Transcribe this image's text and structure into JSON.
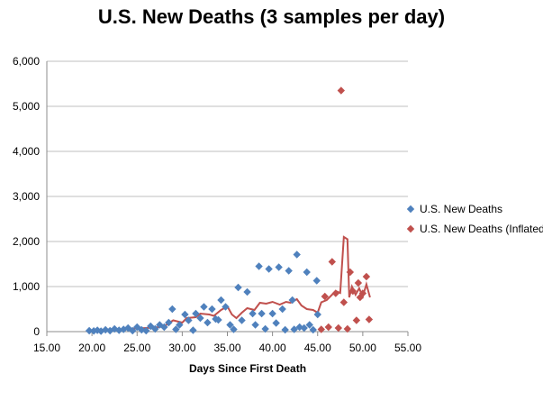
{
  "chart_data": {
    "type": "scatter",
    "title": "U.S. New Deaths (3 samples per day)",
    "xlabel": "Days Since First Death",
    "ylabel": "",
    "xlim": [
      15,
      55
    ],
    "ylim": [
      0,
      6000
    ],
    "x_ticks": [
      "15.00",
      "20.00",
      "25.00",
      "30.00",
      "35.00",
      "40.00",
      "45.00",
      "50.00",
      "55.00"
    ],
    "y_ticks": [
      "0",
      "1,000",
      "2,000",
      "3,000",
      "4,000",
      "5,000",
      "6,000"
    ],
    "grid": "horizontal",
    "legend_position": "right",
    "series": [
      {
        "name": "U.S. New Deaths",
        "color": "#4f81bd",
        "marker": "diamond",
        "points": [
          [
            19.7,
            20
          ],
          [
            20.2,
            15
          ],
          [
            20.6,
            30
          ],
          [
            21.0,
            10
          ],
          [
            21.5,
            40
          ],
          [
            22.0,
            20
          ],
          [
            22.5,
            60
          ],
          [
            23.0,
            30
          ],
          [
            23.5,
            50
          ],
          [
            24.0,
            80
          ],
          [
            24.5,
            20
          ],
          [
            25.0,
            100
          ],
          [
            25.5,
            40
          ],
          [
            26.0,
            20
          ],
          [
            26.5,
            120
          ],
          [
            27.0,
            60
          ],
          [
            27.5,
            150
          ],
          [
            28.0,
            100
          ],
          [
            28.5,
            200
          ],
          [
            28.9,
            500
          ],
          [
            29.3,
            50
          ],
          [
            29.7,
            150
          ],
          [
            30.3,
            380
          ],
          [
            30.7,
            250
          ],
          [
            31.2,
            30
          ],
          [
            31.5,
            400
          ],
          [
            32.0,
            300
          ],
          [
            32.4,
            550
          ],
          [
            32.8,
            200
          ],
          [
            33.3,
            500
          ],
          [
            33.7,
            280
          ],
          [
            34.0,
            260
          ],
          [
            34.3,
            700
          ],
          [
            34.8,
            550
          ],
          [
            35.3,
            150
          ],
          [
            35.7,
            50
          ],
          [
            36.2,
            980
          ],
          [
            36.6,
            250
          ],
          [
            37.2,
            880
          ],
          [
            37.8,
            400
          ],
          [
            38.1,
            150
          ],
          [
            38.5,
            1450
          ],
          [
            38.8,
            400
          ],
          [
            39.2,
            60
          ],
          [
            39.6,
            1390
          ],
          [
            40.0,
            400
          ],
          [
            40.4,
            190
          ],
          [
            40.7,
            1430
          ],
          [
            41.1,
            500
          ],
          [
            41.4,
            40
          ],
          [
            41.8,
            1350
          ],
          [
            42.2,
            700
          ],
          [
            42.4,
            50
          ],
          [
            42.7,
            1710
          ],
          [
            43.0,
            100
          ],
          [
            43.5,
            80
          ],
          [
            43.8,
            1320
          ],
          [
            44.1,
            150
          ],
          [
            44.5,
            40
          ],
          [
            44.9,
            1130
          ],
          [
            45.0,
            380
          ]
        ]
      },
      {
        "name": "U.S. New Deaths (Inflated)",
        "color": "#c0504d",
        "marker": "diamond",
        "points": [
          [
            45.4,
            50
          ],
          [
            45.8,
            780
          ],
          [
            46.2,
            100
          ],
          [
            46.6,
            1550
          ],
          [
            47.0,
            850
          ],
          [
            47.3,
            80
          ],
          [
            47.6,
            5350
          ],
          [
            47.9,
            650
          ],
          [
            48.3,
            60
          ],
          [
            48.6,
            1320
          ],
          [
            48.9,
            900
          ],
          [
            49.3,
            250
          ],
          [
            49.7,
            760
          ],
          [
            50.0,
            850
          ],
          [
            50.4,
            1220
          ],
          [
            50.7,
            270
          ],
          [
            49.5,
            1080
          ]
        ]
      }
    ],
    "trend_line": {
      "color": "#c0504d",
      "points": [
        [
          19.7,
          20
        ],
        [
          21.0,
          30
        ],
        [
          22.0,
          50
        ],
        [
          23.0,
          40
        ],
        [
          24.0,
          60
        ],
        [
          25.0,
          70
        ],
        [
          26.0,
          80
        ],
        [
          27.0,
          90
        ],
        [
          28.0,
          120
        ],
        [
          29.0,
          250
        ],
        [
          30.0,
          200
        ],
        [
          30.5,
          300
        ],
        [
          31.5,
          320
        ],
        [
          32.0,
          400
        ],
        [
          33.0,
          380
        ],
        [
          33.5,
          350
        ],
        [
          34.3,
          480
        ],
        [
          35.0,
          560
        ],
        [
          35.5,
          380
        ],
        [
          36.0,
          300
        ],
        [
          36.6,
          420
        ],
        [
          37.2,
          520
        ],
        [
          38.0,
          480
        ],
        [
          38.6,
          640
        ],
        [
          39.3,
          620
        ],
        [
          40.0,
          660
        ],
        [
          40.8,
          600
        ],
        [
          41.5,
          660
        ],
        [
          42.0,
          640
        ],
        [
          42.7,
          720
        ],
        [
          43.2,
          580
        ],
        [
          43.8,
          500
        ],
        [
          44.5,
          480
        ],
        [
          45.0,
          420
        ],
        [
          45.4,
          650
        ],
        [
          46.0,
          700
        ],
        [
          46.5,
          800
        ],
        [
          47.0,
          900
        ],
        [
          47.5,
          860
        ],
        [
          47.9,
          2100
        ],
        [
          48.3,
          2050
        ],
        [
          48.5,
          760
        ],
        [
          48.8,
          1000
        ],
        [
          49.2,
          820
        ],
        [
          49.6,
          960
        ],
        [
          50.0,
          780
        ],
        [
          50.4,
          1050
        ],
        [
          50.8,
          760
        ]
      ]
    }
  }
}
